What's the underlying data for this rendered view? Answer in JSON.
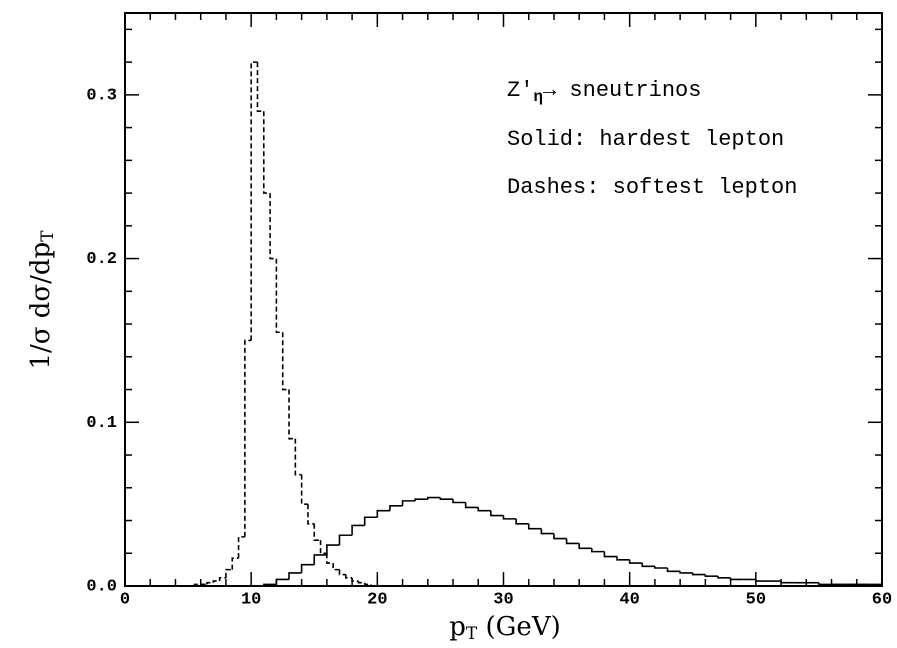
{
  "chart_data": {
    "type": "histogram",
    "xlabel": [
      "p",
      "T",
      " (GeV)"
    ],
    "ylabel": [
      "1/σ dσ/dp",
      "T"
    ],
    "annotations": [
      [
        "Z'",
        "η",
        "→ sneutrinos"
      ],
      "Solid: hardest lepton",
      "Dashes: softest lepton"
    ],
    "xlim": [
      0,
      60
    ],
    "ylim": [
      0,
      0.35
    ],
    "xticks": [
      0,
      10,
      20,
      30,
      40,
      50,
      60
    ],
    "xminorticks": [
      2,
      4,
      6,
      8,
      12,
      14,
      16,
      18,
      22,
      24,
      26,
      28,
      32,
      34,
      36,
      38,
      42,
      44,
      46,
      48,
      52,
      54,
      56,
      58
    ],
    "yticks": [
      {
        "value": 0,
        "label": "0.0"
      },
      0.1,
      0.2,
      0.3
    ],
    "yminorticks": [
      0.02,
      0.04,
      0.06,
      0.08,
      0.12,
      0.14,
      0.16,
      0.18,
      0.22,
      0.24,
      0.26,
      0.28,
      0.32,
      0.34
    ],
    "series": [
      {
        "name": "Solid: hardest lepton",
        "color": "#000000",
        "dash": false,
        "bins": [
          10,
          11,
          12,
          13,
          14,
          15,
          16,
          17,
          18,
          19,
          20,
          21,
          22,
          23,
          24,
          25,
          26,
          27,
          28,
          29,
          30,
          31,
          32,
          33,
          34,
          35,
          36,
          37,
          38,
          39,
          40,
          41,
          42,
          43,
          44,
          45,
          46,
          47,
          48,
          49,
          50,
          51,
          52,
          53,
          54,
          55,
          56,
          57,
          58,
          59,
          60
        ],
        "values": [
          0.0,
          0.001,
          0.004,
          0.008,
          0.013,
          0.019,
          0.025,
          0.031,
          0.037,
          0.042,
          0.046,
          0.049,
          0.052,
          0.053,
          0.054,
          0.053,
          0.051,
          0.048,
          0.046,
          0.043,
          0.041,
          0.038,
          0.035,
          0.032,
          0.029,
          0.026,
          0.023,
          0.021,
          0.018,
          0.016,
          0.014,
          0.012,
          0.011,
          0.009,
          0.008,
          0.007,
          0.006,
          0.005,
          0.004,
          0.004,
          0.003,
          0.003,
          0.002,
          0.002,
          0.002,
          0.001,
          0.001,
          0.001,
          0.001,
          0.001
        ]
      },
      {
        "name": "Dashes: softest lepton",
        "color": "#000000",
        "dash": true,
        "bins": [
          5,
          5.5,
          6,
          6.5,
          7,
          7.5,
          8,
          8.5,
          9,
          9.5,
          10,
          10.5,
          11,
          11.5,
          12,
          12.5,
          13,
          13.5,
          14,
          14.5,
          15,
          15.5,
          16,
          16.5,
          17,
          17.5,
          18,
          18.5,
          19,
          19.5,
          20
        ],
        "values": [
          0.0,
          0.001,
          0.001,
          0.002,
          0.003,
          0.005,
          0.01,
          0.017,
          0.03,
          0.15,
          0.32,
          0.29,
          0.24,
          0.2,
          0.155,
          0.12,
          0.09,
          0.068,
          0.05,
          0.038,
          0.028,
          0.02,
          0.014,
          0.01,
          0.007,
          0.005,
          0.003,
          0.002,
          0.001,
          0.0
        ]
      }
    ]
  }
}
